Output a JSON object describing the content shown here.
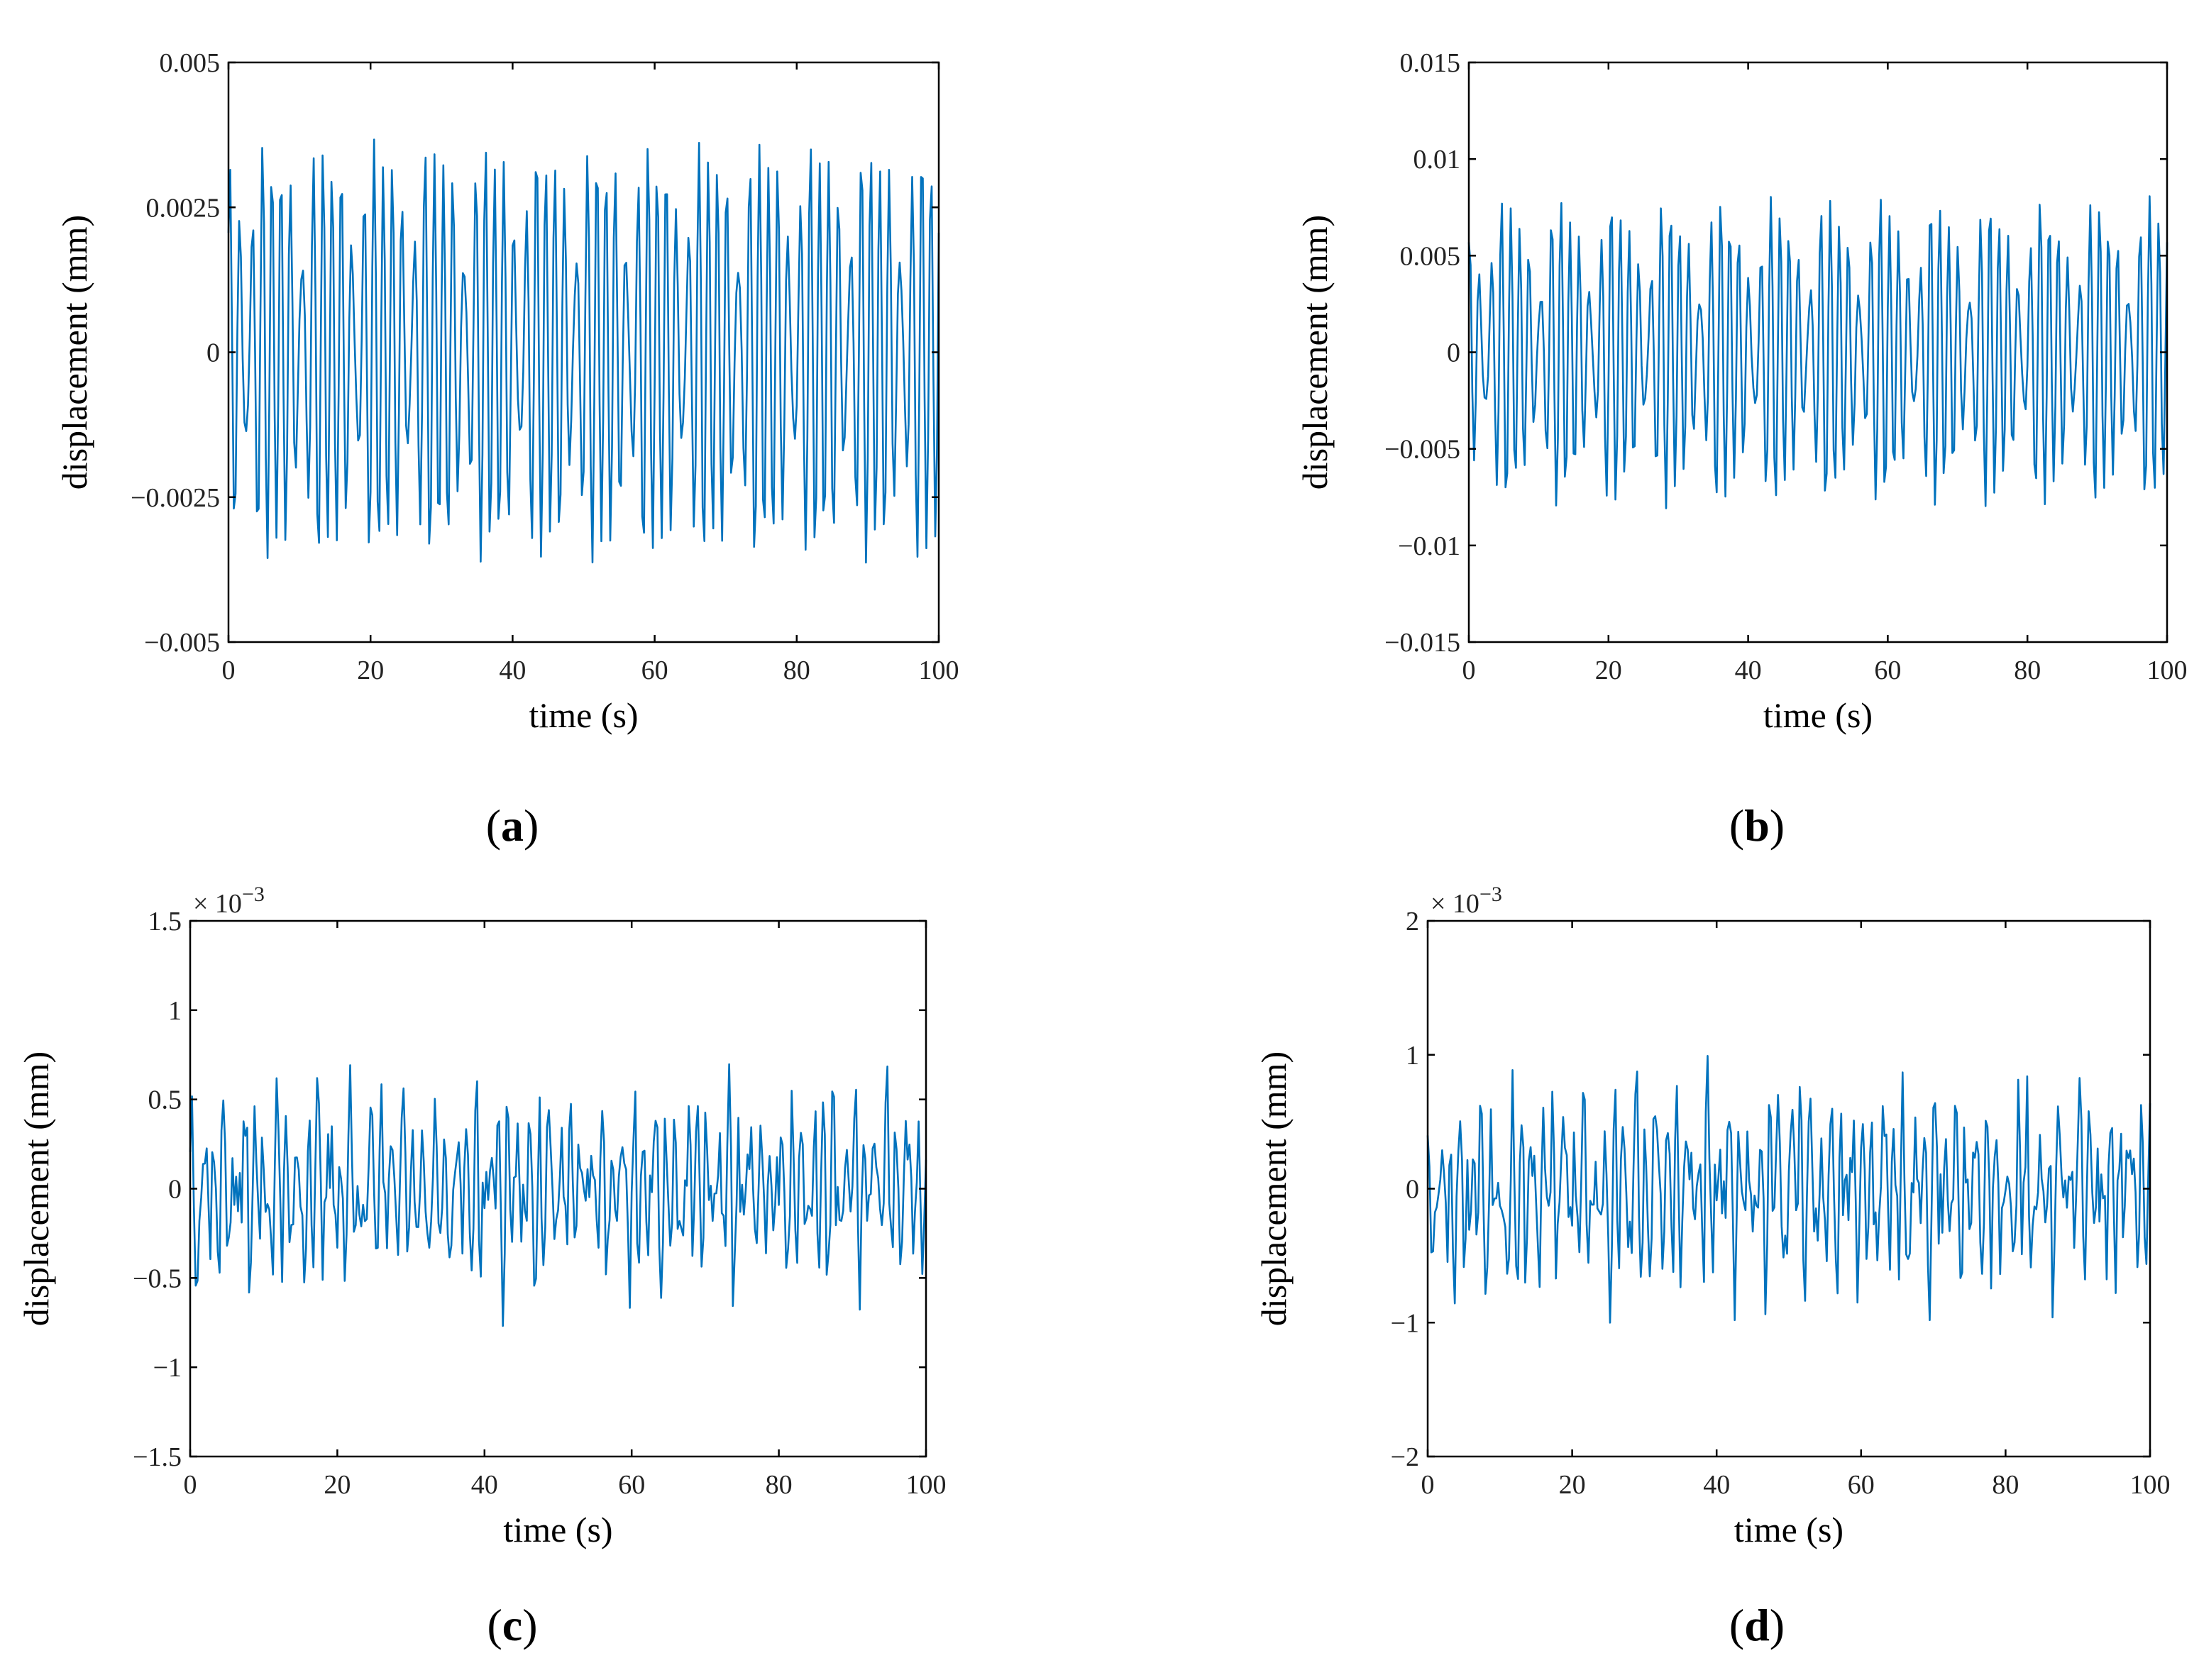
{
  "chart_data": [
    {
      "type": "line",
      "panel_label": "a",
      "xlabel": "time (s)",
      "ylabel": "displacement (mm)",
      "xlim": [
        0,
        100
      ],
      "ylim": [
        -0.005,
        0.005
      ],
      "xticks": [
        0,
        20,
        40,
        60,
        80,
        100
      ],
      "xtick_labels": [
        "0",
        "20",
        "40",
        "60",
        "80",
        "100"
      ],
      "yticks": [
        -0.005,
        -0.0025,
        0,
        0.0025,
        0.005
      ],
      "ytick_labels": [
        "−0.005",
        "−0.0025",
        "0",
        "0.0025",
        "0.005"
      ],
      "exponent_label": "",
      "series_color": "#0072BD",
      "signal": {
        "sample_step": 0.25,
        "amplitude": 0.0042,
        "components": [
          {
            "freq": 0.7,
            "amp": 0.55,
            "phase": 0.0
          },
          {
            "freq": 0.83,
            "amp": 0.4,
            "phase": 1.1
          },
          {
            "freq": 0.57,
            "amp": 0.18,
            "phase": 2.3
          }
        ],
        "noise": 0.0,
        "seed": 11
      }
    },
    {
      "type": "line",
      "panel_label": "b",
      "xlabel": "time (s)",
      "ylabel": "displacement (mm)",
      "xlim": [
        0,
        100
      ],
      "ylim": [
        -0.015,
        0.015
      ],
      "xticks": [
        0,
        20,
        40,
        60,
        80,
        100
      ],
      "xtick_labels": [
        "0",
        "20",
        "40",
        "60",
        "80",
        "100"
      ],
      "yticks": [
        -0.015,
        -0.01,
        -0.005,
        0,
        0.005,
        0.01,
        0.015
      ],
      "ytick_labels": [
        "−0.015",
        "−0.01",
        "−0.005",
        "0",
        "0.005",
        "0.01",
        "0.015"
      ],
      "exponent_label": "",
      "series_color": "#0072BD",
      "signal": {
        "sample_step": 0.25,
        "amplitude": 0.0088,
        "components": [
          {
            "freq": 0.7,
            "amp": 0.55,
            "phase": 0.4
          },
          {
            "freq": 0.83,
            "amp": 0.4,
            "phase": 1.7
          },
          {
            "freq": 0.57,
            "amp": 0.15,
            "phase": 2.9
          }
        ],
        "noise": 0.0,
        "seed": 23
      }
    },
    {
      "type": "line",
      "panel_label": "c",
      "xlabel": "time (s)",
      "ylabel": "displacement (mm)",
      "xlim": [
        0,
        100
      ],
      "ylim": [
        -1.5,
        1.5
      ],
      "xticks": [
        0,
        20,
        40,
        60,
        80,
        100
      ],
      "xtick_labels": [
        "0",
        "20",
        "40",
        "60",
        "80",
        "100"
      ],
      "yticks": [
        -1.5,
        -1,
        -0.5,
        0,
        0.5,
        1,
        1.5
      ],
      "ytick_labels": [
        "−1.5",
        "−1",
        "−0.5",
        "0",
        "0.5",
        "1",
        "1.5"
      ],
      "exponent_label": "× 10",
      "exponent_power": "−3",
      "series_color": "#0072BD",
      "signal": {
        "sample_step": 0.25,
        "amplitude": 0.62,
        "components": [
          {
            "freq": 0.7,
            "amp": 0.45,
            "phase": 0.2
          },
          {
            "freq": 0.93,
            "amp": 0.3,
            "phase": 0.9
          },
          {
            "freq": 0.41,
            "amp": 0.2,
            "phase": 2.0
          }
        ],
        "noise": 0.35,
        "seed": 37
      }
    },
    {
      "type": "line",
      "panel_label": "d",
      "xlabel": "time (s)",
      "ylabel": "displacement (mm)",
      "xlim": [
        0,
        100
      ],
      "ylim": [
        -2,
        2
      ],
      "xticks": [
        0,
        20,
        40,
        60,
        80,
        100
      ],
      "xtick_labels": [
        "0",
        "20",
        "40",
        "60",
        "80",
        "100"
      ],
      "yticks": [
        -2,
        -1,
        0,
        1,
        2
      ],
      "ytick_labels": [
        "−2",
        "−1",
        "0",
        "1",
        "2"
      ],
      "exponent_label": "× 10",
      "exponent_power": "−3",
      "series_color": "#0072BD",
      "signal": {
        "sample_step": 0.25,
        "amplitude": 0.85,
        "components": [
          {
            "freq": 0.7,
            "amp": 0.45,
            "phase": 0.6
          },
          {
            "freq": 0.93,
            "amp": 0.3,
            "phase": 1.4
          },
          {
            "freq": 0.41,
            "amp": 0.2,
            "phase": 2.6
          }
        ],
        "noise": 0.38,
        "seed": 53
      }
    }
  ]
}
